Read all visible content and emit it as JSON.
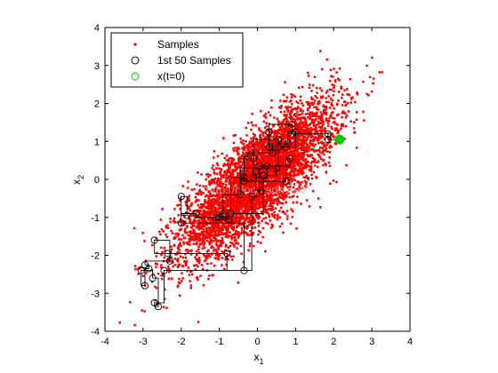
{
  "chart_data": {
    "type": "scatter",
    "xlabel": "x",
    "xlabel_subscript": "1",
    "ylabel": "x",
    "ylabel_subscript": "2",
    "xlim": [
      -4,
      4
    ],
    "ylim": [
      -4,
      4
    ],
    "xticks": [
      "-4",
      "-3",
      "-2",
      "-1",
      "0",
      "1",
      "2",
      "3",
      "4"
    ],
    "yticks": [
      "-4",
      "-3",
      "-2",
      "-1",
      "0",
      "1",
      "2",
      "3",
      "4"
    ],
    "grid": false,
    "legend_position": "top-left",
    "series": [
      {
        "name": "Samples",
        "marker": "point",
        "color": "#ff0000",
        "distribution": {
          "mean": [
            0,
            0
          ],
          "std": [
            1,
            1
          ],
          "correlation": 0.8,
          "count": 5000
        }
      },
      {
        "name": "1st 50 Samples",
        "marker": "circle",
        "color": "#000000",
        "connected_by_path": true,
        "points": [
          [
            2.15,
            1.05
          ],
          [
            1.85,
            1.05
          ],
          [
            1.85,
            1.2
          ],
          [
            0.9,
            1.2
          ],
          [
            0.9,
            1.45
          ],
          [
            0.3,
            1.25
          ],
          [
            0.3,
            0.85
          ],
          [
            0.75,
            0.85
          ],
          [
            0.55,
            1.05
          ],
          [
            -0.1,
            0.55
          ],
          [
            -0.1,
            0.05
          ],
          [
            0.25,
            0.35
          ],
          [
            0.85,
            0.55
          ],
          [
            0.75,
            -0.05
          ],
          [
            -0.35,
            0.05
          ],
          [
            -0.7,
            -0.9
          ],
          [
            0.15,
            0.1
          ],
          [
            0.5,
            0.3
          ],
          [
            -0.45,
            -0.4
          ],
          [
            -0.9,
            -0.9
          ],
          [
            -1.0,
            -1.0
          ],
          [
            -0.75,
            -1.05
          ],
          [
            -1.1,
            -1.0
          ],
          [
            -1.6,
            -0.9
          ],
          [
            -2.0,
            -0.45
          ],
          [
            -1.85,
            -0.95
          ],
          [
            -2.0,
            -1.15
          ],
          [
            -0.35,
            -2.4
          ],
          [
            -0.8,
            -1.95
          ],
          [
            -2.35,
            -1.95
          ],
          [
            -2.7,
            -1.6
          ],
          [
            -2.3,
            -2.15
          ],
          [
            -2.95,
            -2.25
          ],
          [
            -2.85,
            -2.35
          ],
          [
            -2.95,
            -2.8
          ],
          [
            -3.05,
            -2.4
          ],
          [
            -2.75,
            -2.6
          ],
          [
            -2.6,
            -3.35
          ],
          [
            -2.7,
            -3.25
          ],
          [
            -2.45,
            -2.4
          ],
          [
            -0.15,
            -0.45
          ],
          [
            0.05,
            0.35
          ],
          [
            0.55,
            0.85
          ],
          [
            1.0,
            1.25
          ],
          [
            0.8,
            0.95
          ],
          [
            0.4,
            0.7
          ],
          [
            -0.25,
            0.6
          ],
          [
            -0.35,
            -0.05
          ],
          [
            0.1,
            -0.3
          ],
          [
            -0.05,
            0.2
          ]
        ]
      },
      {
        "name": "x(t=0)",
        "marker": "circle",
        "color": "#00cc00",
        "points": [
          [
            2.15,
            1.05
          ]
        ]
      }
    ],
    "annotations": [
      {
        "text": "http://blog.csdn.net/",
        "role": "watermark"
      }
    ]
  }
}
